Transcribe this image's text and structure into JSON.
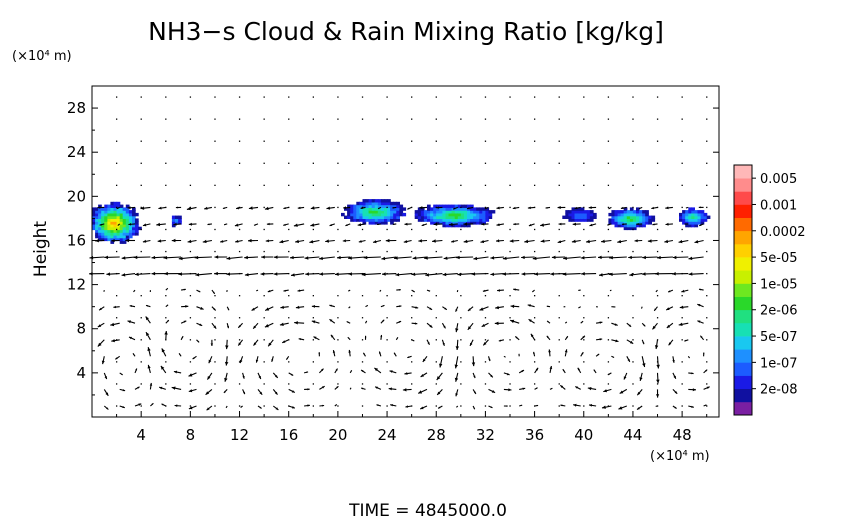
{
  "title": "NH3−s Cloud & Rain Mixing Ratio [kg/kg]",
  "time_label": "TIME  =  4845000.0",
  "chart_data": {
    "type": "heatmap",
    "title": "NH3−s Cloud & Rain Mixing Ratio [kg/kg]",
    "ylabel": "Height",
    "xlabel": "",
    "x_unit": "(×10⁴ m)",
    "y_unit": "(×10⁴ m)",
    "xlim": [
      0,
      51
    ],
    "ylim": [
      0,
      30
    ],
    "xticks": [
      4,
      8,
      12,
      16,
      20,
      24,
      28,
      32,
      36,
      40,
      44,
      48
    ],
    "yticks": [
      4,
      8,
      12,
      16,
      20,
      24,
      28
    ],
    "grid": "dotted",
    "colorbar": {
      "position": "right",
      "levels": [
        {
          "label": "",
          "color": "#7a1fa2"
        },
        {
          "label": "2e-08",
          "color": "#1010a0"
        },
        {
          "label": "",
          "color": "#1a1ae6"
        },
        {
          "label": "1e-07",
          "color": "#1c5cff"
        },
        {
          "label": "",
          "color": "#1e90ff"
        },
        {
          "label": "5e-07",
          "color": "#19c8f0"
        },
        {
          "label": "",
          "color": "#17e0b4"
        },
        {
          "label": "2e-06",
          "color": "#20e080"
        },
        {
          "label": "",
          "color": "#2ad82a"
        },
        {
          "label": "1e-05",
          "color": "#6ee820"
        },
        {
          "label": "",
          "color": "#c8f000"
        },
        {
          "label": "5e-05",
          "color": "#f0f000"
        },
        {
          "label": "",
          "color": "#ffd000"
        },
        {
          "label": "0.0002",
          "color": "#ffa500"
        },
        {
          "label": "",
          "color": "#ff6a00"
        },
        {
          "label": "0.001",
          "color": "#ff2000"
        },
        {
          "label": "",
          "color": "#ff4a4a"
        },
        {
          "label": "0.005",
          "color": "#ff8c8c"
        },
        {
          "label": "",
          "color": "#ffb8b8"
        }
      ]
    },
    "regions": [
      {
        "cx": 1.8,
        "cy": 17.6,
        "rx": 2.2,
        "ry": 2.0,
        "peak": 13
      },
      {
        "cx": 6.8,
        "cy": 17.8,
        "rx": 0.5,
        "ry": 0.5,
        "peak": 4
      },
      {
        "cx": 23.0,
        "cy": 18.6,
        "rx": 2.7,
        "ry": 1.2,
        "peak": 8
      },
      {
        "cx": 29.5,
        "cy": 18.3,
        "rx": 3.5,
        "ry": 1.1,
        "peak": 8
      },
      {
        "cx": 39.7,
        "cy": 18.3,
        "rx": 1.5,
        "ry": 0.7,
        "peak": 3
      },
      {
        "cx": 43.8,
        "cy": 18.0,
        "rx": 2.0,
        "ry": 1.0,
        "peak": 8
      },
      {
        "cx": 48.9,
        "cy": 18.1,
        "rx": 1.3,
        "ry": 0.9,
        "peak": 7
      }
    ],
    "circulation_cells": [
      {
        "cx": 2.5,
        "cy": 5.0,
        "rx": 3.0,
        "ry": 5.0,
        "dir": 1
      },
      {
        "cx": 8.0,
        "cy": 6.0,
        "rx": 3.0,
        "ry": 5.5,
        "dir": -1
      },
      {
        "cx": 16.5,
        "cy": 5.5,
        "rx": 4.5,
        "ry": 5.0,
        "dir": 1
      },
      {
        "cx": 26.0,
        "cy": 6.0,
        "rx": 4.0,
        "ry": 5.0,
        "dir": -1
      },
      {
        "cx": 33.5,
        "cy": 6.0,
        "rx": 4.0,
        "ry": 5.0,
        "dir": 1
      },
      {
        "cx": 42.0,
        "cy": 4.5,
        "rx": 4.0,
        "ry": 4.5,
        "dir": -1
      },
      {
        "cx": 48.5,
        "cy": 6.0,
        "rx": 3.0,
        "ry": 5.0,
        "dir": 1
      }
    ]
  }
}
